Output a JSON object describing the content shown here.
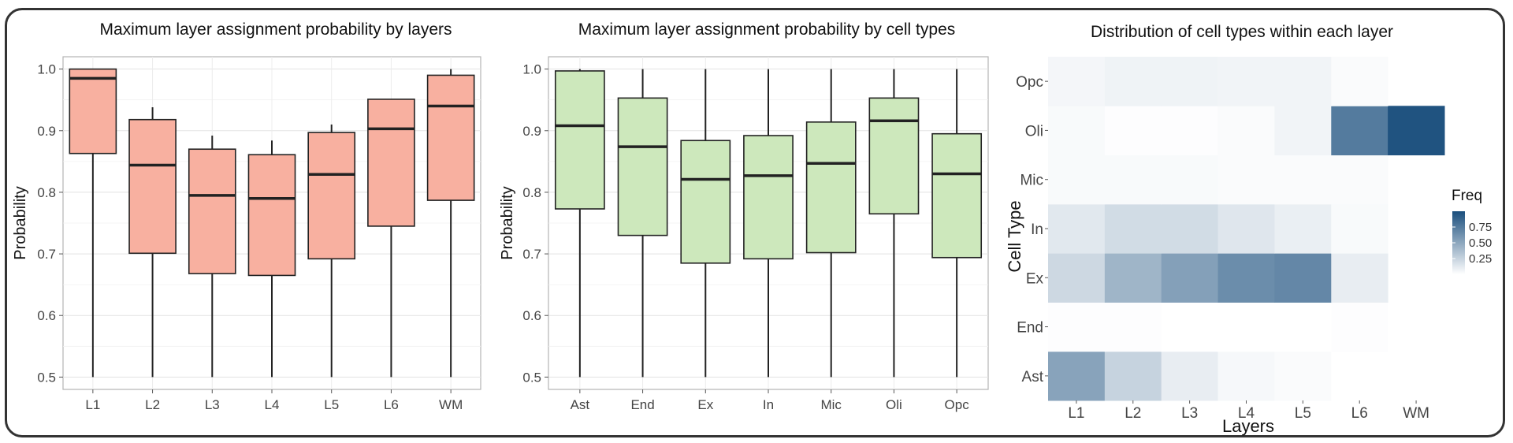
{
  "chart_data": [
    {
      "type": "box",
      "title": "Maximum layer assignment probability by layers",
      "xlabel": "",
      "ylabel": "Probability",
      "ylim": [
        0.48,
        1.02
      ],
      "yticks": [
        "0.5",
        "0.6",
        "0.7",
        "0.8",
        "0.9",
        "1.0"
      ],
      "grid": true,
      "fill_color": "#f8b0a0",
      "categories": [
        "L1",
        "L2",
        "L3",
        "L4",
        "L5",
        "L6",
        "WM"
      ],
      "boxes": [
        {
          "min": 0.5,
          "q1": 0.863,
          "median": 0.985,
          "q3": 1.0,
          "max": 1.0
        },
        {
          "min": 0.5,
          "q1": 0.701,
          "median": 0.844,
          "q3": 0.918,
          "max": 0.938
        },
        {
          "min": 0.5,
          "q1": 0.668,
          "median": 0.795,
          "q3": 0.87,
          "max": 0.892
        },
        {
          "min": 0.5,
          "q1": 0.665,
          "median": 0.79,
          "q3": 0.861,
          "max": 0.884
        },
        {
          "min": 0.5,
          "q1": 0.692,
          "median": 0.829,
          "q3": 0.897,
          "max": 0.91
        },
        {
          "min": 0.5,
          "q1": 0.745,
          "median": 0.903,
          "q3": 0.951,
          "max": 0.951
        },
        {
          "min": 0.5,
          "q1": 0.787,
          "median": 0.94,
          "q3": 0.99,
          "max": 1.0
        }
      ]
    },
    {
      "type": "box",
      "title": "Maximum layer assignment probability by cell types",
      "xlabel": "",
      "ylabel": "Probability",
      "ylim": [
        0.48,
        1.02
      ],
      "yticks": [
        "0.5",
        "0.6",
        "0.7",
        "0.8",
        "0.9",
        "1.0"
      ],
      "grid": true,
      "fill_color": "#cde8bc",
      "categories": [
        "Ast",
        "End",
        "Ex",
        "In",
        "Mic",
        "Oli",
        "Opc"
      ],
      "boxes": [
        {
          "min": 0.5,
          "q1": 0.773,
          "median": 0.908,
          "q3": 0.997,
          "max": 1.0
        },
        {
          "min": 0.5,
          "q1": 0.73,
          "median": 0.874,
          "q3": 0.953,
          "max": 1.0
        },
        {
          "min": 0.5,
          "q1": 0.685,
          "median": 0.821,
          "q3": 0.884,
          "max": 1.0
        },
        {
          "min": 0.5,
          "q1": 0.692,
          "median": 0.827,
          "q3": 0.892,
          "max": 1.0
        },
        {
          "min": 0.5,
          "q1": 0.702,
          "median": 0.847,
          "q3": 0.914,
          "max": 1.0
        },
        {
          "min": 0.5,
          "q1": 0.765,
          "median": 0.916,
          "q3": 0.953,
          "max": 1.0
        },
        {
          "min": 0.5,
          "q1": 0.694,
          "median": 0.83,
          "q3": 0.895,
          "max": 1.0
        }
      ]
    },
    {
      "type": "heatmap",
      "title": "Distribution of cell types within each layer",
      "xlabel": "Layers",
      "ylabel": "Cell Type",
      "x_categories": [
        "L1",
        "L2",
        "L3",
        "L4",
        "L5",
        "L6",
        "WM"
      ],
      "y_categories": [
        "Ast",
        "End",
        "Ex",
        "In",
        "Mic",
        "Oli",
        "Opc"
      ],
      "values": [
        [
          0.52,
          0.25,
          0.1,
          0.04,
          0.02,
          0.0,
          null
        ],
        [
          0.01,
          0.01,
          0.0,
          0.0,
          0.0,
          0.01,
          null
        ],
        [
          0.22,
          0.42,
          0.54,
          0.65,
          0.68,
          0.1,
          null
        ],
        [
          0.13,
          0.2,
          0.2,
          0.14,
          0.09,
          0.03,
          null
        ],
        [
          0.03,
          0.03,
          0.03,
          0.02,
          0.02,
          0.02,
          null
        ],
        [
          0.03,
          0.01,
          0.01,
          0.02,
          0.06,
          0.75,
          0.98
        ],
        [
          0.05,
          0.07,
          0.07,
          0.06,
          0.06,
          0.02,
          null
        ]
      ],
      "legend": {
        "title": "Freq",
        "ticks": [
          "0.25",
          "0.50",
          "0.75"
        ],
        "range": [
          0,
          1
        ],
        "placement": "right"
      },
      "colors": {
        "low": "#ffffff",
        "high": "#1b4f7d"
      }
    }
  ]
}
